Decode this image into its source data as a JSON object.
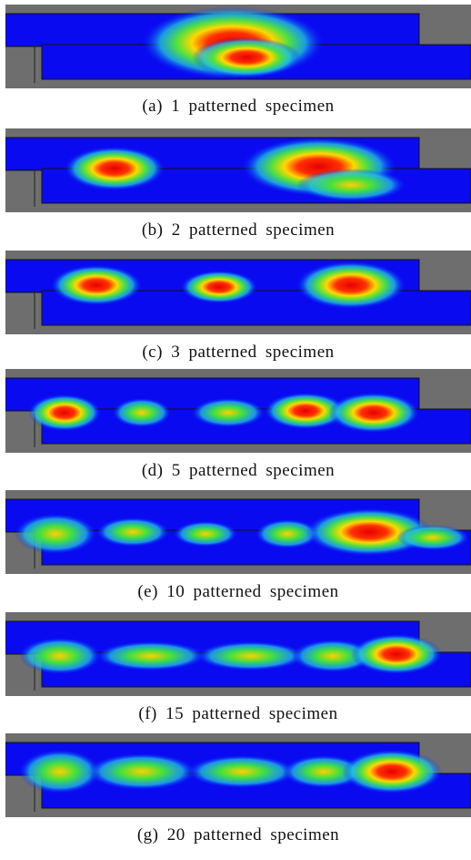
{
  "panels": [
    {
      "caption": "(a) 1 patterned specimen"
    },
    {
      "caption": "(b) 2 patterned specimen"
    },
    {
      "caption": "(c) 3 patterned specimen"
    },
    {
      "caption": "(d) 5 patterned specimen"
    },
    {
      "caption": "(e) 10 patterned specimen"
    },
    {
      "caption": "(f) 15 patterned specimen"
    },
    {
      "caption": "(g) 20 patterned specimen"
    }
  ]
}
